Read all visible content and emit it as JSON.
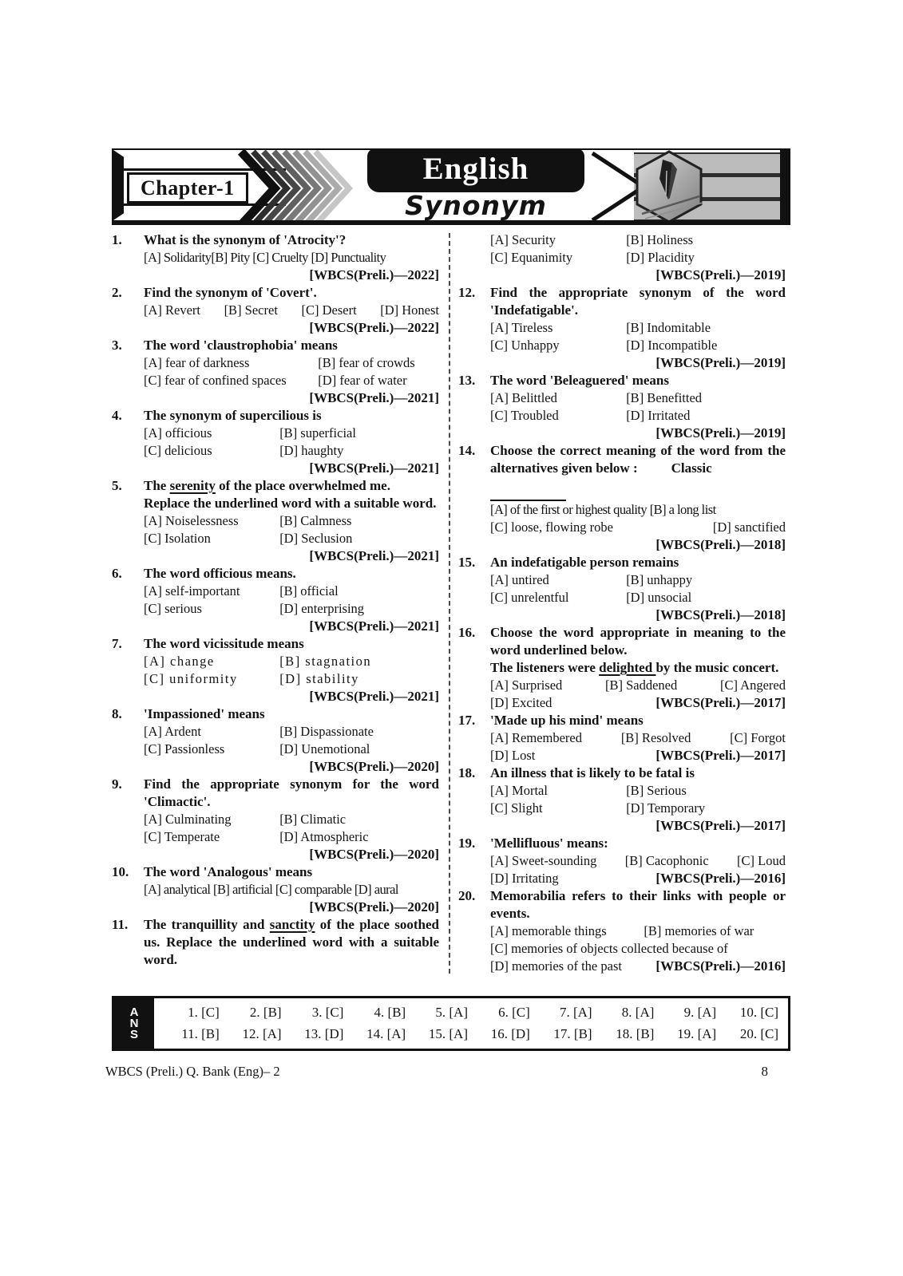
{
  "header": {
    "chapter": "Chapter-1",
    "subject": "English",
    "topic": "Synonym"
  },
  "colors": {
    "ink": "#111111",
    "paper": "#ffffff",
    "stripe_gray": "#bcbcbc"
  },
  "icons": {
    "pen_hexagon": "pen-nib-photo-hexagon",
    "chevrons": "fading-chevron-stripes"
  },
  "questions_left": [
    {
      "num": "1.",
      "q": [
        [
          {
            "t": "What is the synonym of 'Atrocity'?"
          }
        ]
      ],
      "rows": [
        {
          "type": "inline",
          "tight": true,
          "cells": [
            "[A] Solidarity[B] Pity [C] Cruelty [D] Punctuality"
          ]
        },
        {
          "type": "cite",
          "cite": "[WBCS(Preli.)—2022]"
        }
      ]
    },
    {
      "num": "2.",
      "q": [
        [
          {
            "t": "Find the synonym of 'Covert'."
          }
        ]
      ],
      "rows": [
        {
          "type": "opts4",
          "cells": [
            "[A] Revert",
            "[B] Secret",
            "[C] Desert",
            "[D] Honest"
          ]
        },
        {
          "type": "cite",
          "cite": "[WBCS(Preli.)—2022]"
        }
      ]
    },
    {
      "num": "3.",
      "q": [
        [
          {
            "t": "The word 'claustrophobia' means"
          }
        ]
      ],
      "rows": [
        {
          "type": "opts2",
          "split": 59,
          "cells": [
            "[A] fear of darkness",
            "[B] fear of crowds"
          ]
        },
        {
          "type": "opts2",
          "split": 59,
          "cells": [
            "[C] fear of confined spaces",
            "[D] fear of water"
          ]
        },
        {
          "type": "cite",
          "cite": "[WBCS(Preli.)—2021]"
        }
      ]
    },
    {
      "num": "4.",
      "q": [
        [
          {
            "t": "The synonym of supercilious is"
          }
        ]
      ],
      "rows": [
        {
          "type": "opts2",
          "cells": [
            "[A] officious",
            "[B] superficial"
          ]
        },
        {
          "type": "opts2",
          "cells": [
            "[C] delicious",
            "[D] haughty"
          ]
        },
        {
          "type": "cite",
          "cite": "[WBCS(Preli.)—2021]"
        }
      ]
    },
    {
      "num": "5.",
      "q": [
        [
          {
            "t": "The "
          },
          {
            "t": "serenity",
            "u": true
          },
          {
            "t": " of the place overwhelmed me."
          }
        ],
        [
          {
            "t": "Replace the underlined word with a suitable word."
          }
        ]
      ],
      "rows": [
        {
          "type": "opts2",
          "cells": [
            "[A] Noiselessness",
            "[B] Calmness"
          ]
        },
        {
          "type": "opts2",
          "cells": [
            "[C] Isolation",
            "[D] Seclusion"
          ]
        },
        {
          "type": "cite",
          "cite": "[WBCS(Preli.)—2021]"
        }
      ]
    },
    {
      "num": "6.",
      "q": [
        [
          {
            "t": "The word officious means."
          }
        ]
      ],
      "rows": [
        {
          "type": "opts2",
          "cells": [
            "[A] self-important",
            "[B] official"
          ]
        },
        {
          "type": "opts2",
          "cells": [
            "[C] serious",
            "[D] enterprising"
          ]
        },
        {
          "type": "cite",
          "cite": "[WBCS(Preli.)—2021]"
        }
      ]
    },
    {
      "num": "7.",
      "q": [
        [
          {
            "t": "The word vicissitude means"
          }
        ]
      ],
      "rows": [
        {
          "type": "opts2",
          "ls": true,
          "cells": [
            "[A] change",
            "[B] stagnation"
          ]
        },
        {
          "type": "opts2",
          "ls": true,
          "cells": [
            "[C] uniformity",
            "[D] stability"
          ]
        },
        {
          "type": "cite",
          "cite": "[WBCS(Preli.)—2021]"
        }
      ]
    },
    {
      "num": "8.",
      "q": [
        [
          {
            "t": "'Impassioned' means"
          }
        ]
      ],
      "rows": [
        {
          "type": "opts2",
          "cells": [
            "[A] Ardent",
            "[B] Dispassionate"
          ]
        },
        {
          "type": "opts2",
          "cells": [
            "[C] Passionless",
            "[D] Unemotional"
          ]
        },
        {
          "type": "cite",
          "cite": "[WBCS(Preli.)—2020]"
        }
      ]
    },
    {
      "num": "9.",
      "q": [
        [
          {
            "t": "Find the appropriate synonym for the word 'Climactic'."
          }
        ]
      ],
      "rows": [
        {
          "type": "opts2",
          "cells": [
            "[A] Culminating",
            "[B] Climatic"
          ]
        },
        {
          "type": "opts2",
          "cells": [
            "[C] Temperate",
            "[D] Atmospheric"
          ]
        },
        {
          "type": "cite",
          "cite": "[WBCS(Preli.)—2020]"
        }
      ]
    },
    {
      "num": "10.",
      "q": [
        [
          {
            "t": "The word 'Analogous' means"
          }
        ]
      ],
      "rows": [
        {
          "type": "inline",
          "tight": true,
          "cells": [
            "[A] analytical [B] artificial [C] comparable [D] aural"
          ]
        },
        {
          "type": "cite",
          "cite": "[WBCS(Preli.)—2020]"
        }
      ]
    },
    {
      "num": "11.",
      "q": [
        [
          {
            "t": "The tranquillity and "
          },
          {
            "t": "sanctity",
            "u": true
          },
          {
            "t": " of the place soothed us. Replace the underlined word with a suitable word."
          }
        ]
      ],
      "rows": []
    }
  ],
  "questions_right": [
    {
      "num": "",
      "q": [],
      "rows": [
        {
          "type": "opts2",
          "cells": [
            "[A] Security",
            "[B] Holiness"
          ]
        },
        {
          "type": "opts2",
          "cells": [
            "[C] Equanimity",
            "[D] Placidity"
          ]
        },
        {
          "type": "cite",
          "cite": "[WBCS(Preli.)—2019]"
        }
      ]
    },
    {
      "num": "12.",
      "q": [
        [
          {
            "t": "Find the appropriate synonym of the word 'Indefatigable'."
          }
        ]
      ],
      "rows": [
        {
          "type": "opts2",
          "cells": [
            "[A] Tireless",
            "[B] Indomitable"
          ]
        },
        {
          "type": "opts2",
          "cells": [
            "[C] Unhappy",
            "[D] Incompatible"
          ]
        },
        {
          "type": "cite",
          "cite": "[WBCS(Preli.)—2019]"
        }
      ]
    },
    {
      "num": "13.",
      "q": [
        [
          {
            "t": "The word 'Beleaguered' means"
          }
        ]
      ],
      "rows": [
        {
          "type": "opts2",
          "cells": [
            "[A] Belittled",
            "[B] Benefitted"
          ]
        },
        {
          "type": "opts2",
          "cells": [
            "[C] Troubled",
            "[D] Irritated"
          ]
        },
        {
          "type": "cite",
          "cite": "[WBCS(Preli.)—2019]"
        }
      ]
    },
    {
      "num": "14.",
      "q": [
        [
          {
            "t": "Choose the correct meaning of the word from the alternatives given below :"
          },
          {
            "gap": 42
          },
          {
            "t": "Classic"
          }
        ]
      ],
      "rows": [
        {
          "type": "blank",
          "w": 95
        },
        {
          "type": "inline",
          "tight": true,
          "cells": [
            "[A] of the first or highest quality [B] a long list"
          ]
        },
        {
          "type": "opts2s",
          "cells": [
            "[C] loose, flowing robe",
            "[D] sanctified"
          ]
        },
        {
          "type": "cite",
          "cite": "[WBCS(Preli.)—2018]"
        }
      ]
    },
    {
      "num": "15.",
      "q": [
        [
          {
            "t": "An indefatigable person remains"
          }
        ]
      ],
      "rows": [
        {
          "type": "opts2",
          "cells": [
            "[A] untired",
            "[B] unhappy"
          ]
        },
        {
          "type": "opts2",
          "cells": [
            "[C] unrelentful",
            "[D] unsocial"
          ]
        },
        {
          "type": "cite",
          "cite": "[WBCS(Preli.)—2018]"
        }
      ]
    },
    {
      "num": "16.",
      "q": [
        [
          {
            "t": "Choose the word appropriate in meaning to the word underlined below."
          }
        ],
        [
          {
            "t": "The listeners were "
          },
          {
            "t": "delighted ",
            "u": true
          },
          {
            "t": " by the music concert."
          }
        ]
      ],
      "rows": [
        {
          "type": "opts3",
          "cells": [
            "[A] Surprised",
            "[B] Saddened",
            "[C] Angered"
          ]
        },
        {
          "type": "optcite",
          "cells": [
            "[D] Excited"
          ],
          "cite": "[WBCS(Preli.)—2017]"
        }
      ]
    },
    {
      "num": "17.",
      "q": [
        [
          {
            "t": "'Made up his mind' means"
          }
        ]
      ],
      "rows": [
        {
          "type": "opts3",
          "cells": [
            "[A] Remembered",
            "[B] Resolved",
            "[C] Forgot"
          ]
        },
        {
          "type": "optcite",
          "cells": [
            "[D] Lost"
          ],
          "cite": "[WBCS(Preli.)—2017]"
        }
      ]
    },
    {
      "num": "18.",
      "q": [
        [
          {
            "t": "An illness that is likely to be fatal is"
          }
        ]
      ],
      "rows": [
        {
          "type": "opts2",
          "cells": [
            "[A] Mortal",
            "[B] Serious"
          ]
        },
        {
          "type": "opts2",
          "cells": [
            "[C] Slight",
            "[D] Temporary"
          ]
        },
        {
          "type": "cite",
          "cite": "[WBCS(Preli.)—2017]"
        }
      ]
    },
    {
      "num": "19.",
      "q": [
        [
          {
            "t": "'Mellifluous' means:"
          }
        ]
      ],
      "rows": [
        {
          "type": "opts3",
          "cells": [
            "[A] Sweet-sounding",
            "[B] Cacophonic",
            "[C] Loud"
          ]
        },
        {
          "type": "optcite",
          "cells": [
            "[D] Irritating"
          ],
          "cite": "[WBCS(Preli.)—2016]"
        }
      ]
    },
    {
      "num": "20.",
      "q": [
        [
          {
            "t": "Memorabilia refers to their links with people or events."
          }
        ]
      ],
      "rows": [
        {
          "type": "opts2",
          "split": 52,
          "cells": [
            "[A] memorable things",
            "[B] memories of war"
          ]
        },
        {
          "type": "inline",
          "cells": [
            "[C] memories of objects collected because of"
          ]
        },
        {
          "type": "optcite",
          "cells": [
            "[D] memories of the past"
          ],
          "cite": "[WBCS(Preli.)—2016]"
        }
      ]
    }
  ],
  "answers": {
    "label": "ANS",
    "rows": [
      [
        "1. [C]",
        "2. [B]",
        "3. [C]",
        "4. [B]",
        "5. [A]",
        "6. [C]",
        "7. [A]",
        "8. [A]",
        "9. [A]",
        "10. [C]"
      ],
      [
        "11. [B]",
        "12. [A]",
        "13. [D]",
        "14. [A]",
        "15. [A]",
        "16. [D]",
        "17. [B]",
        "18. [B]",
        "19. [A]",
        "20. [C]"
      ]
    ]
  },
  "footer": {
    "left": "WBCS (Preli.) Q. Bank (Eng)– 2",
    "page": "8"
  }
}
